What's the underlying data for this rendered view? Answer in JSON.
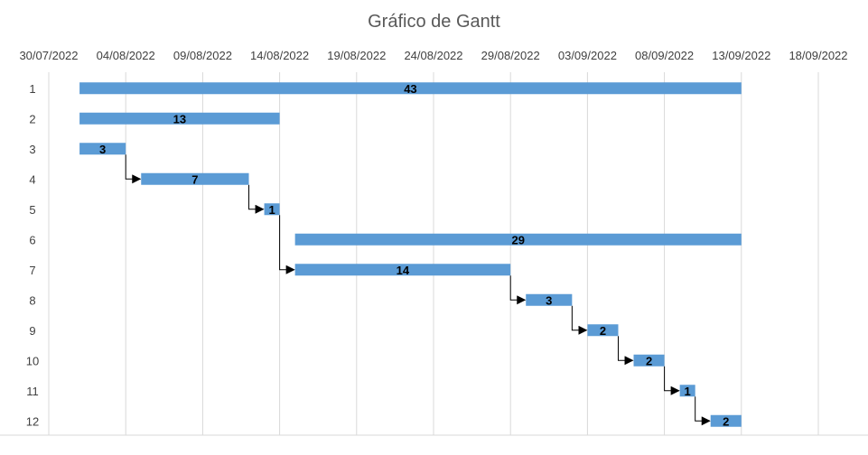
{
  "chart_data": {
    "type": "gantt",
    "title": "Gráfico de Gantt",
    "x_axis": {
      "type": "date",
      "min": "2022-07-30",
      "max": "2022-09-18",
      "step_days": 5,
      "tick_labels": [
        "30/07/2022",
        "04/08/2022",
        "09/08/2022",
        "14/08/2022",
        "19/08/2022",
        "24/08/2022",
        "29/08/2022",
        "03/09/2022",
        "08/09/2022",
        "13/09/2022",
        "18/09/2022"
      ],
      "position": "top",
      "grid": true
    },
    "tasks": [
      {
        "id": "1",
        "start": "2022-08-01",
        "end": "2022-09-13",
        "duration": 43
      },
      {
        "id": "2",
        "start": "2022-08-01",
        "end": "2022-08-14",
        "duration": 13
      },
      {
        "id": "3",
        "start": "2022-08-01",
        "end": "2022-08-04",
        "duration": 3
      },
      {
        "id": "4",
        "start": "2022-08-05",
        "end": "2022-08-12",
        "duration": 7
      },
      {
        "id": "5",
        "start": "2022-08-13",
        "end": "2022-08-14",
        "duration": 1
      },
      {
        "id": "6",
        "start": "2022-08-15",
        "end": "2022-09-13",
        "duration": 29
      },
      {
        "id": "7",
        "start": "2022-08-15",
        "end": "2022-08-29",
        "duration": 14
      },
      {
        "id": "8",
        "start": "2022-08-30",
        "end": "2022-09-02",
        "duration": 3
      },
      {
        "id": "9",
        "start": "2022-09-03",
        "end": "2022-09-05",
        "duration": 2
      },
      {
        "id": "10",
        "start": "2022-09-06",
        "end": "2022-09-08",
        "duration": 2
      },
      {
        "id": "11",
        "start": "2022-09-09",
        "end": "2022-09-10",
        "duration": 1
      },
      {
        "id": "12",
        "start": "2022-09-11",
        "end": "2022-09-13",
        "duration": 2
      }
    ],
    "dependencies": [
      [
        "3",
        "4"
      ],
      [
        "4",
        "5"
      ],
      [
        "5",
        "7"
      ],
      [
        "7",
        "8"
      ],
      [
        "8",
        "9"
      ],
      [
        "9",
        "10"
      ],
      [
        "10",
        "11"
      ],
      [
        "11",
        "12"
      ]
    ],
    "colors": {
      "bar": "#5b9bd5",
      "grid": "#d9d9d9",
      "text": "#404040",
      "connector": "#000000"
    }
  }
}
